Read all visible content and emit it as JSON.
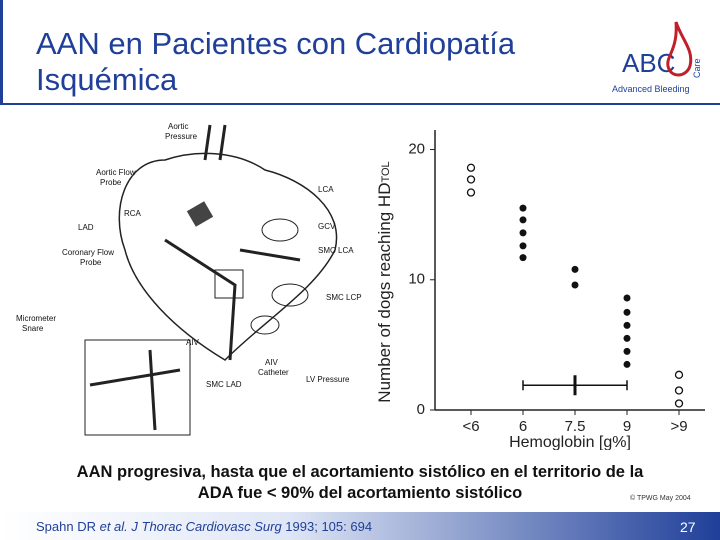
{
  "header": {
    "title_line1": "AAN en Pacientes con Cardiopatía",
    "title_line2": "Isquémica",
    "logo": "ABC",
    "logo_side": "Care",
    "logo_sub": "Advanced Bleeding"
  },
  "diagram": {
    "labels": [
      "Aortic",
      "Pressure",
      "Aortic Flow",
      "Probe",
      "RCA",
      "LAD",
      "Coronary Flow",
      "Probe",
      "Micrometer",
      "Snare",
      "LCA",
      "GCV",
      "SMC LCA",
      "SMC LCP",
      "AIV",
      "AIV",
      "Catheter",
      "LV Pressure",
      "SMC LAD"
    ]
  },
  "chart_data": {
    "type": "dot",
    "y_label": "Number of dogs reaching HD",
    "y_label_sub": "TOL",
    "x_label": "Hemoglobin [g%]",
    "categories": [
      "<6",
      "6",
      "7.5",
      "9",
      ">9"
    ],
    "filled": [
      [],
      [
        15.5,
        14.6,
        13.6,
        12.6,
        11.7
      ],
      [
        10.8,
        9.6
      ],
      [
        8.6,
        7.5,
        6.5,
        5.5,
        4.5,
        3.5
      ],
      []
    ],
    "open": [
      [
        18.6,
        17.7,
        16.7
      ],
      [],
      [],
      [],
      [
        2.7,
        1.5,
        0.5
      ]
    ],
    "range_bar": {
      "from": "6",
      "to": "9",
      "mean": "7.5",
      "y": 1.9
    },
    "ylim": [
      0,
      21.5
    ],
    "yticks": [
      0,
      10,
      20
    ],
    "color": "#111111"
  },
  "caption": {
    "line1": "AAN progresiva, hasta que el acortamiento sistólico en el territorio de la",
    "line2": "ADA fue < 90% del acortamiento sistólico"
  },
  "copyright": "© TPWG May 2004",
  "footer": {
    "authors": "Spahn DR ",
    "etal": "et al.",
    "journal": " J Thorac Cardiovasc Surg",
    "ref": " 1993; 105: 694",
    "page": "27"
  }
}
